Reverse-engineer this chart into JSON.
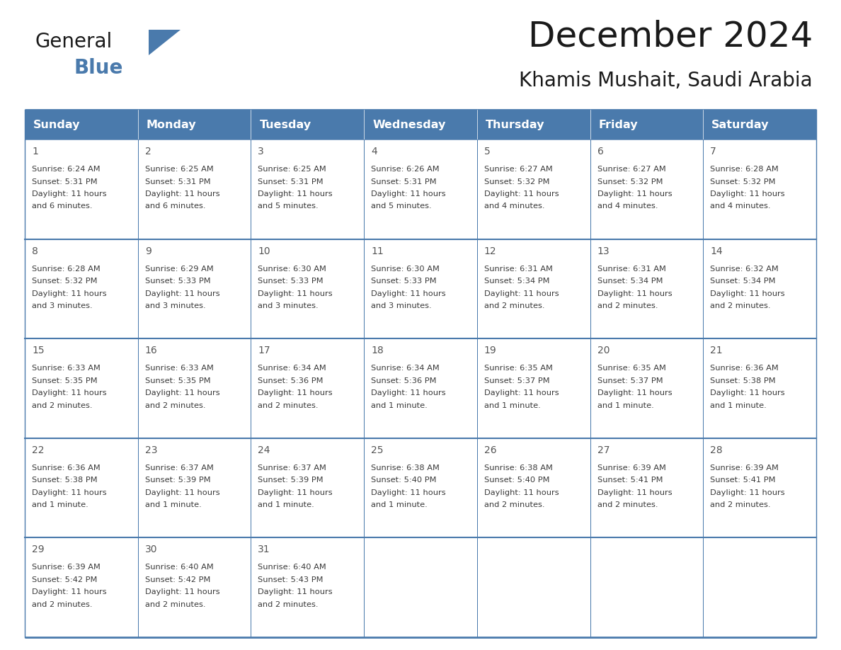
{
  "title": "December 2024",
  "subtitle": "Khamis Mushait, Saudi Arabia",
  "header_bg": "#4a7aac",
  "header_text_color": "#FFFFFF",
  "border_color": "#4a7aac",
  "row_divider_color": "#4a7aac",
  "cell_bg": "#FFFFFF",
  "day_names": [
    "Sunday",
    "Monday",
    "Tuesday",
    "Wednesday",
    "Thursday",
    "Friday",
    "Saturday"
  ],
  "days": [
    {
      "day": 1,
      "col": 0,
      "row": 0,
      "sunrise": "6:24 AM",
      "sunset": "5:31 PM",
      "daylight_line3": "and 6 minutes."
    },
    {
      "day": 2,
      "col": 1,
      "row": 0,
      "sunrise": "6:25 AM",
      "sunset": "5:31 PM",
      "daylight_line3": "and 6 minutes."
    },
    {
      "day": 3,
      "col": 2,
      "row": 0,
      "sunrise": "6:25 AM",
      "sunset": "5:31 PM",
      "daylight_line3": "and 5 minutes."
    },
    {
      "day": 4,
      "col": 3,
      "row": 0,
      "sunrise": "6:26 AM",
      "sunset": "5:31 PM",
      "daylight_line3": "and 5 minutes."
    },
    {
      "day": 5,
      "col": 4,
      "row": 0,
      "sunrise": "6:27 AM",
      "sunset": "5:32 PM",
      "daylight_line3": "and 4 minutes."
    },
    {
      "day": 6,
      "col": 5,
      "row": 0,
      "sunrise": "6:27 AM",
      "sunset": "5:32 PM",
      "daylight_line3": "and 4 minutes."
    },
    {
      "day": 7,
      "col": 6,
      "row": 0,
      "sunrise": "6:28 AM",
      "sunset": "5:32 PM",
      "daylight_line3": "and 4 minutes."
    },
    {
      "day": 8,
      "col": 0,
      "row": 1,
      "sunrise": "6:28 AM",
      "sunset": "5:32 PM",
      "daylight_line3": "and 3 minutes."
    },
    {
      "day": 9,
      "col": 1,
      "row": 1,
      "sunrise": "6:29 AM",
      "sunset": "5:33 PM",
      "daylight_line3": "and 3 minutes."
    },
    {
      "day": 10,
      "col": 2,
      "row": 1,
      "sunrise": "6:30 AM",
      "sunset": "5:33 PM",
      "daylight_line3": "and 3 minutes."
    },
    {
      "day": 11,
      "col": 3,
      "row": 1,
      "sunrise": "6:30 AM",
      "sunset": "5:33 PM",
      "daylight_line3": "and 3 minutes."
    },
    {
      "day": 12,
      "col": 4,
      "row": 1,
      "sunrise": "6:31 AM",
      "sunset": "5:34 PM",
      "daylight_line3": "and 2 minutes."
    },
    {
      "day": 13,
      "col": 5,
      "row": 1,
      "sunrise": "6:31 AM",
      "sunset": "5:34 PM",
      "daylight_line3": "and 2 minutes."
    },
    {
      "day": 14,
      "col": 6,
      "row": 1,
      "sunrise": "6:32 AM",
      "sunset": "5:34 PM",
      "daylight_line3": "and 2 minutes."
    },
    {
      "day": 15,
      "col": 0,
      "row": 2,
      "sunrise": "6:33 AM",
      "sunset": "5:35 PM",
      "daylight_line3": "and 2 minutes."
    },
    {
      "day": 16,
      "col": 1,
      "row": 2,
      "sunrise": "6:33 AM",
      "sunset": "5:35 PM",
      "daylight_line3": "and 2 minutes."
    },
    {
      "day": 17,
      "col": 2,
      "row": 2,
      "sunrise": "6:34 AM",
      "sunset": "5:36 PM",
      "daylight_line3": "and 2 minutes."
    },
    {
      "day": 18,
      "col": 3,
      "row": 2,
      "sunrise": "6:34 AM",
      "sunset": "5:36 PM",
      "daylight_line3": "and 1 minute."
    },
    {
      "day": 19,
      "col": 4,
      "row": 2,
      "sunrise": "6:35 AM",
      "sunset": "5:37 PM",
      "daylight_line3": "and 1 minute."
    },
    {
      "day": 20,
      "col": 5,
      "row": 2,
      "sunrise": "6:35 AM",
      "sunset": "5:37 PM",
      "daylight_line3": "and 1 minute."
    },
    {
      "day": 21,
      "col": 6,
      "row": 2,
      "sunrise": "6:36 AM",
      "sunset": "5:38 PM",
      "daylight_line3": "and 1 minute."
    },
    {
      "day": 22,
      "col": 0,
      "row": 3,
      "sunrise": "6:36 AM",
      "sunset": "5:38 PM",
      "daylight_line3": "and 1 minute."
    },
    {
      "day": 23,
      "col": 1,
      "row": 3,
      "sunrise": "6:37 AM",
      "sunset": "5:39 PM",
      "daylight_line3": "and 1 minute."
    },
    {
      "day": 24,
      "col": 2,
      "row": 3,
      "sunrise": "6:37 AM",
      "sunset": "5:39 PM",
      "daylight_line3": "and 1 minute."
    },
    {
      "day": 25,
      "col": 3,
      "row": 3,
      "sunrise": "6:38 AM",
      "sunset": "5:40 PM",
      "daylight_line3": "and 1 minute."
    },
    {
      "day": 26,
      "col": 4,
      "row": 3,
      "sunrise": "6:38 AM",
      "sunset": "5:40 PM",
      "daylight_line3": "and 2 minutes."
    },
    {
      "day": 27,
      "col": 5,
      "row": 3,
      "sunrise": "6:39 AM",
      "sunset": "5:41 PM",
      "daylight_line3": "and 2 minutes."
    },
    {
      "day": 28,
      "col": 6,
      "row": 3,
      "sunrise": "6:39 AM",
      "sunset": "5:41 PM",
      "daylight_line3": "and 2 minutes."
    },
    {
      "day": 29,
      "col": 0,
      "row": 4,
      "sunrise": "6:39 AM",
      "sunset": "5:42 PM",
      "daylight_line3": "and 2 minutes."
    },
    {
      "day": 30,
      "col": 1,
      "row": 4,
      "sunrise": "6:40 AM",
      "sunset": "5:42 PM",
      "daylight_line3": "and 2 minutes."
    },
    {
      "day": 31,
      "col": 2,
      "row": 4,
      "sunrise": "6:40 AM",
      "sunset": "5:43 PM",
      "daylight_line3": "and 2 minutes."
    }
  ],
  "num_rows": 5,
  "logo_black_color": "#1a1a1a",
  "logo_blue_color": "#4a7aac",
  "logo_triangle_color": "#4a7aac",
  "title_color": "#1a1a1a",
  "subtitle_color": "#1a1a1a",
  "text_color": "#3a3a3a",
  "day_num_color": "#555555"
}
